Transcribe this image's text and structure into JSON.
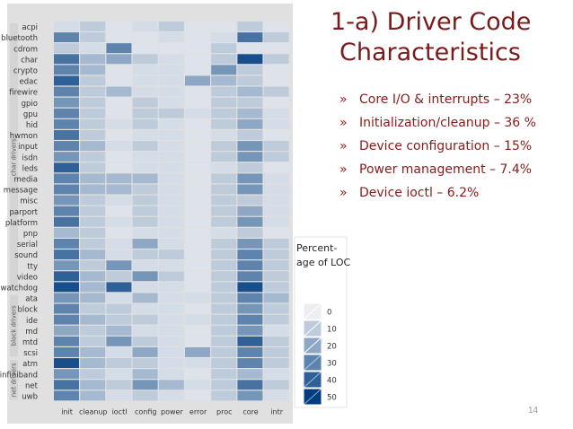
{
  "slide": {
    "title_line1": "1-a) Driver Code",
    "title_line2": "Characteristics",
    "bullet_marker": "»",
    "bullets": [
      "Core I/O & interrupts – 23%",
      "Initialization/cleanup – 36 %",
      "Device configuration – 15%",
      "Power management – 7.4%",
      "Device ioctl  – 6.2%"
    ],
    "page_number": "14"
  },
  "chart_data": {
    "type": "heatmap",
    "rows": [
      "acpi",
      "bluetooth",
      "cdrom",
      "char",
      "crypto",
      "edac",
      "firewire",
      "gpio",
      "gpu",
      "hid",
      "hwmon",
      "input",
      "isdn",
      "leds",
      "media",
      "message",
      "misc",
      "parport",
      "platform",
      "pnp",
      "serial",
      "sound",
      "tty",
      "video",
      "watchdog",
      "ata",
      "block",
      "ide",
      "md",
      "mtd",
      "scsi",
      "atm",
      "infiniband",
      "net",
      "uwb"
    ],
    "columns": [
      "init",
      "cleanup",
      "ioctl",
      "config",
      "power",
      "error",
      "proc",
      "core",
      "intr"
    ],
    "groups": [
      {
        "label": "char drivers",
        "from": 0,
        "to": 24
      },
      {
        "label": "block drivers",
        "from": 25,
        "to": 30
      },
      {
        "label": "net drivers",
        "from": 31,
        "to": 34
      }
    ],
    "values": [
      [
        5,
        10,
        3,
        5,
        10,
        3,
        3,
        10,
        3
      ],
      [
        30,
        10,
        3,
        3,
        5,
        3,
        5,
        35,
        10
      ],
      [
        10,
        5,
        30,
        3,
        3,
        3,
        10,
        3,
        3
      ],
      [
        35,
        15,
        20,
        10,
        5,
        3,
        10,
        45,
        10
      ],
      [
        30,
        15,
        3,
        5,
        5,
        3,
        25,
        10,
        3
      ],
      [
        40,
        10,
        3,
        5,
        5,
        20,
        15,
        10,
        3
      ],
      [
        30,
        10,
        15,
        5,
        5,
        3,
        10,
        15,
        10
      ],
      [
        25,
        10,
        3,
        10,
        5,
        3,
        10,
        10,
        3
      ],
      [
        30,
        10,
        3,
        10,
        10,
        5,
        10,
        15,
        5
      ],
      [
        30,
        10,
        5,
        10,
        5,
        3,
        10,
        20,
        5
      ],
      [
        35,
        10,
        3,
        5,
        5,
        3,
        5,
        10,
        3
      ],
      [
        30,
        15,
        5,
        10,
        5,
        3,
        10,
        25,
        10
      ],
      [
        25,
        10,
        3,
        5,
        5,
        3,
        10,
        25,
        10
      ],
      [
        40,
        10,
        3,
        5,
        5,
        3,
        5,
        10,
        3
      ],
      [
        30,
        15,
        15,
        15,
        5,
        3,
        10,
        25,
        5
      ],
      [
        30,
        15,
        15,
        10,
        5,
        3,
        10,
        25,
        5
      ],
      [
        25,
        10,
        5,
        10,
        5,
        3,
        10,
        10,
        5
      ],
      [
        30,
        10,
        3,
        10,
        5,
        3,
        10,
        20,
        5
      ],
      [
        35,
        10,
        5,
        10,
        5,
        3,
        10,
        25,
        5
      ],
      [
        15,
        10,
        3,
        5,
        5,
        3,
        5,
        10,
        3
      ],
      [
        30,
        10,
        5,
        20,
        5,
        3,
        10,
        25,
        10
      ],
      [
        35,
        15,
        5,
        10,
        10,
        3,
        10,
        30,
        10
      ],
      [
        25,
        10,
        25,
        5,
        5,
        3,
        10,
        30,
        10
      ],
      [
        40,
        15,
        10,
        25,
        10,
        3,
        10,
        30,
        10
      ],
      [
        45,
        15,
        40,
        5,
        5,
        3,
        10,
        45,
        10
      ],
      [
        25,
        15,
        5,
        15,
        5,
        5,
        10,
        30,
        15
      ],
      [
        30,
        10,
        10,
        5,
        5,
        3,
        10,
        25,
        10
      ],
      [
        30,
        15,
        10,
        10,
        5,
        5,
        10,
        30,
        10
      ],
      [
        20,
        10,
        15,
        5,
        5,
        3,
        10,
        25,
        5
      ],
      [
        30,
        10,
        25,
        10,
        5,
        3,
        10,
        40,
        10
      ],
      [
        30,
        15,
        5,
        20,
        5,
        20,
        10,
        30,
        10
      ],
      [
        45,
        15,
        10,
        10,
        5,
        5,
        10,
        30,
        10
      ],
      [
        25,
        10,
        5,
        15,
        5,
        3,
        10,
        15,
        5
      ],
      [
        35,
        15,
        10,
        25,
        15,
        5,
        10,
        35,
        10
      ],
      [
        30,
        15,
        5,
        10,
        5,
        3,
        10,
        25,
        5
      ]
    ],
    "legend": {
      "title_line1": "Percent-",
      "title_line2": "age of LOC",
      "ticks": [
        "0",
        "10",
        "20",
        "30",
        "40",
        "50"
      ],
      "values": [
        0,
        10,
        20,
        30,
        40,
        50
      ]
    },
    "colors": {
      "low": "#eceef2",
      "high": "#003d80",
      "panel": "#e0e0e0",
      "grid": "#ffffff"
    }
  }
}
